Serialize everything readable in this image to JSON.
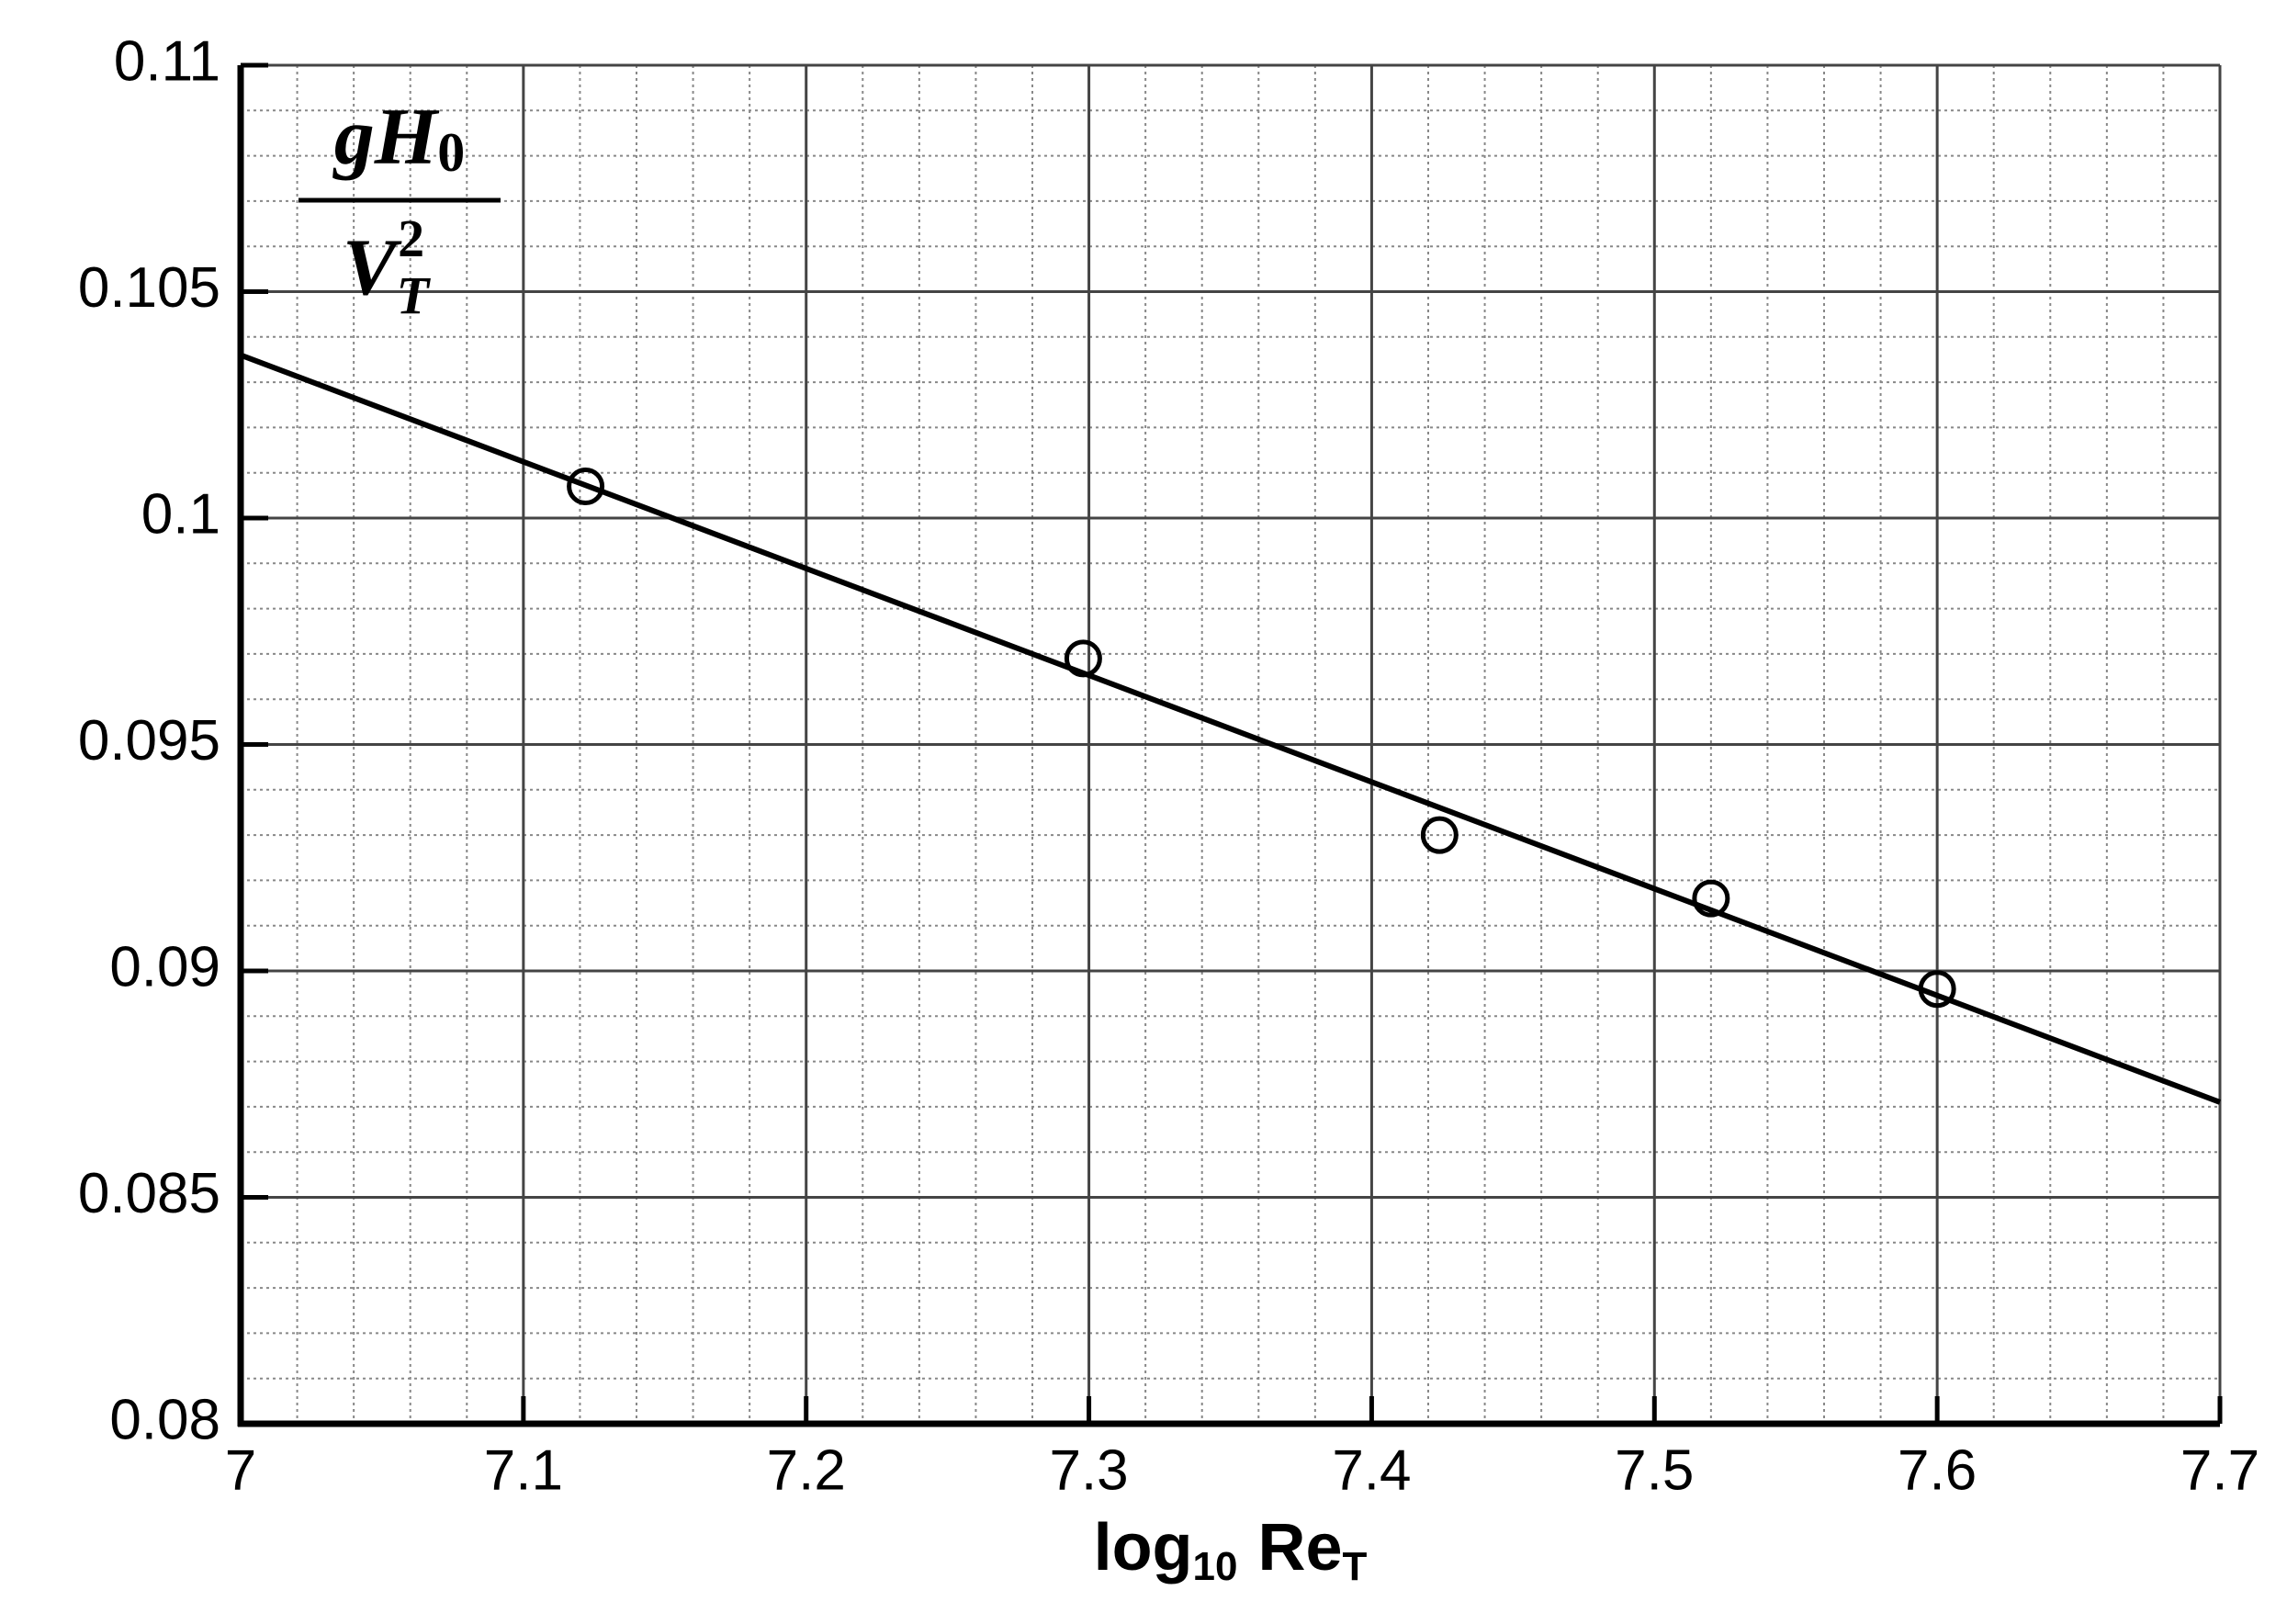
{
  "chart_data": {
    "type": "scatter",
    "xlabel_parts": [
      "log",
      "10",
      "Re",
      "T"
    ],
    "ylabel_numerator": [
      "g",
      "H",
      "0"
    ],
    "ylabel_denominator": [
      "V",
      "T",
      "2"
    ],
    "points": {
      "x": [
        7.122,
        7.298,
        7.424,
        7.52,
        7.6
      ],
      "y": [
        0.1007,
        0.0969,
        0.093,
        0.0916,
        0.0896
      ]
    },
    "fit_line": {
      "x": [
        7,
        7.7
      ],
      "y": [
        0.1036,
        0.0871
      ]
    },
    "color": "#000000",
    "xlim": [
      7,
      7.7
    ],
    "xticks": [
      7,
      7.1,
      7.2,
      7.3,
      7.4,
      7.5,
      7.6,
      7.7
    ],
    "ylim": [
      0.08,
      0.11
    ],
    "yticks": [
      0.08,
      0.085,
      0.09,
      0.095,
      0.1,
      0.105,
      0.11
    ],
    "grid": true,
    "minor_xstep": 0.02,
    "minor_ystep": 0.001
  }
}
